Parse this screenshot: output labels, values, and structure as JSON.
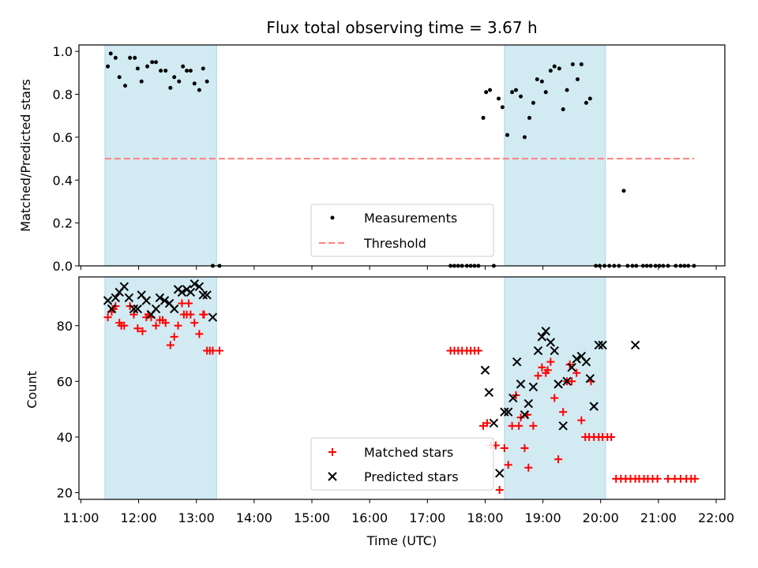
{
  "title": "Flux total observing time = 3.67 h",
  "colors": {
    "band": "#add8e6",
    "measurement": "#000000",
    "threshold": "#ff7f7f",
    "matched": "#ff0000",
    "predicted": "#000000"
  },
  "chart_data": [
    {
      "type": "scatter",
      "ylabel": "Matched/Predicted stars",
      "xlim": [
        "10:58",
        "22:09"
      ],
      "ylim": [
        0,
        1.03
      ],
      "yticks": [
        0.0,
        0.2,
        0.4,
        0.6,
        0.8,
        1.0
      ],
      "ytick_labels": [
        "0.0",
        "0.2",
        "0.4",
        "0.6",
        "0.8",
        "1.0"
      ],
      "shaded_ranges": [
        [
          "11:25",
          "13:21"
        ],
        [
          "18:20",
          "20:05"
        ]
      ],
      "legend": {
        "placement": "lower center",
        "entries": [
          "Measurements",
          "Threshold"
        ]
      },
      "threshold": {
        "name": "Threshold",
        "x": [
          "11:25",
          "21:37"
        ],
        "y": 0.5
      },
      "series": [
        {
          "name": "Measurements",
          "marker": "dot",
          "x": [
            "11:28",
            "11:31",
            "11:36",
            "11:40",
            "11:46",
            "11:51",
            "11:56",
            "11:59",
            "12:03",
            "12:09",
            "12:14",
            "12:18",
            "12:23",
            "12:28",
            "12:33",
            "12:37",
            "12:42",
            "12:46",
            "12:50",
            "12:54",
            "12:58",
            "13:03",
            "13:07",
            "13:11",
            "13:17",
            "13:24",
            "17:24",
            "17:28",
            "17:32",
            "17:36",
            "17:41",
            "17:45",
            "17:49",
            "17:53",
            "17:58",
            "18:01",
            "18:05",
            "18:09",
            "18:14",
            "18:18",
            "18:23",
            "18:28",
            "18:32",
            "18:37",
            "18:41",
            "18:46",
            "18:50",
            "18:54",
            "18:59",
            "19:03",
            "19:08",
            "19:12",
            "19:17",
            "19:21",
            "19:25",
            "19:31",
            "19:36",
            "19:40",
            "19:45",
            "19:49",
            "19:55",
            "19:59",
            "20:04",
            "20:09",
            "20:14",
            "20:19",
            "20:24",
            "20:28",
            "20:33",
            "20:37",
            "20:44",
            "20:48",
            "20:52",
            "20:57",
            "21:01",
            "21:05",
            "21:10",
            "21:18",
            "21:23",
            "21:27",
            "21:31",
            "21:37"
          ],
          "y": [
            0.93,
            0.99,
            0.97,
            0.88,
            0.84,
            0.97,
            0.97,
            0.92,
            0.86,
            0.93,
            0.95,
            0.95,
            0.91,
            0.91,
            0.83,
            0.88,
            0.86,
            0.93,
            0.91,
            0.91,
            0.85,
            0.82,
            0.92,
            0.86,
            0.0,
            0.0,
            0.0,
            0.0,
            0.0,
            0.0,
            0.0,
            0.0,
            0.0,
            0.0,
            0.69,
            0.81,
            0.82,
            0.0,
            0.78,
            0.74,
            0.61,
            0.81,
            0.82,
            0.79,
            0.6,
            0.69,
            0.76,
            0.87,
            0.86,
            0.81,
            0.91,
            0.93,
            0.92,
            0.73,
            0.82,
            0.94,
            0.87,
            0.94,
            0.76,
            0.78,
            0.0,
            0.0,
            0.0,
            0.0,
            0.0,
            0.0,
            0.35,
            0.0,
            0.0,
            0.0,
            0.0,
            0.0,
            0.0,
            0.0,
            0.0,
            0.0,
            0.0,
            0.0,
            0.0,
            0.0,
            0.0,
            0.0
          ]
        }
      ]
    },
    {
      "type": "scatter",
      "ylabel": "Count",
      "xlabel": "Time (UTC)",
      "xlim": [
        "10:58",
        "22:09"
      ],
      "ylim": [
        17.6,
        97.5
      ],
      "yticks": [
        20,
        40,
        60,
        80
      ],
      "ytick_labels": [
        "20",
        "40",
        "60",
        "80"
      ],
      "xticks": [
        "11:00",
        "12:00",
        "13:00",
        "14:00",
        "15:00",
        "16:00",
        "17:00",
        "18:00",
        "19:00",
        "20:00",
        "21:00",
        "22:00"
      ],
      "shaded_ranges": [
        [
          "11:25",
          "13:21"
        ],
        [
          "18:20",
          "20:05"
        ]
      ],
      "legend": {
        "placement": "lower center",
        "entries": [
          "Matched stars",
          "Predicted stars"
        ]
      },
      "series": [
        {
          "name": "Matched stars",
          "marker": "plus",
          "x": [
            "11:28",
            "11:32",
            "11:36",
            "11:40",
            "11:45",
            "11:51",
            "11:55",
            "11:59",
            "12:04",
            "12:08",
            "12:13",
            "12:18",
            "12:22",
            "12:28",
            "12:33",
            "12:37",
            "12:41",
            "12:45",
            "12:50",
            "12:54",
            "12:58",
            "13:03",
            "13:07",
            "13:11",
            "13:17",
            "13:24",
            "17:24",
            "17:28",
            "17:32",
            "17:36",
            "17:41",
            "17:45",
            "17:49",
            "17:53",
            "17:58",
            "18:02",
            "18:06",
            "18:11",
            "18:15",
            "18:20",
            "18:24",
            "18:28",
            "18:32",
            "18:37",
            "18:41",
            "18:45",
            "18:50",
            "18:55",
            "18:59",
            "19:03",
            "19:08",
            "19:12",
            "19:16",
            "19:21",
            "19:25",
            "19:30",
            "19:35",
            "19:40",
            "19:44",
            "19:48",
            "19:53",
            "19:58",
            "20:02",
            "20:07",
            "20:11",
            "20:16",
            "20:21",
            "20:26",
            "20:31",
            "20:36",
            "20:40",
            "20:45",
            "20:49",
            "20:54",
            "20:59",
            "21:10",
            "21:17",
            "21:23",
            "21:29",
            "21:34",
            "21:38"
          ],
          "y": [
            83,
            85,
            87,
            81,
            80,
            87,
            84,
            79,
            78,
            83,
            83,
            80,
            82,
            81,
            73,
            76,
            80,
            88,
            84,
            84,
            81,
            77,
            84,
            71,
            71,
            71,
            71,
            71,
            71,
            71,
            71,
            71,
            71,
            71,
            44,
            45,
            37,
            37,
            21,
            36,
            30,
            44,
            55,
            47,
            36,
            29,
            44,
            62,
            65,
            63,
            67,
            54,
            32,
            49,
            60,
            60,
            63,
            46,
            40,
            40,
            40,
            40,
            40,
            40,
            40,
            25,
            25,
            25,
            25,
            25,
            25,
            25,
            25,
            25,
            25,
            25,
            25,
            25,
            25,
            25,
            25
          ],
          "note_x_extra": [
            "11:34",
            "11:42",
            "12:10",
            "12:25",
            "12:47",
            "12:52",
            "13:08",
            "13:14",
            "18:35",
            "18:44",
            "19:05",
            "19:28",
            "19:50"
          ],
          "note_y_extra": [
            86,
            80,
            84,
            82,
            84,
            88,
            84,
            71,
            44,
            48,
            64,
            66,
            60
          ]
        },
        {
          "name": "Predicted stars",
          "marker": "x",
          "x": [
            "11:28",
            "11:32",
            "11:36",
            "11:40",
            "11:45",
            "11:50",
            "11:55",
            "11:59",
            "12:03",
            "12:08",
            "12:13",
            "12:18",
            "12:22",
            "12:27",
            "12:32",
            "12:37",
            "12:41",
            "12:45",
            "12:50",
            "12:54",
            "12:58",
            "13:03",
            "13:07",
            "13:11",
            "13:17",
            "18:00",
            "18:04",
            "18:09",
            "18:15",
            "18:20",
            "18:24",
            "18:29",
            "18:33",
            "18:37",
            "18:41",
            "18:45",
            "18:50",
            "18:55",
            "18:59",
            "19:03",
            "19:08",
            "19:12",
            "19:16",
            "19:21",
            "19:25",
            "19:30",
            "19:35",
            "19:40",
            "19:45",
            "19:49",
            "19:53",
            "19:58",
            "20:02",
            "20:36"
          ],
          "y": [
            89,
            86,
            90,
            92,
            94,
            90,
            86,
            86,
            91,
            89,
            84,
            86,
            90,
            89,
            88,
            86,
            93,
            92,
            93,
            92,
            95,
            94,
            91,
            91,
            83,
            64,
            56,
            45,
            27,
            49,
            49,
            54,
            67,
            59,
            48,
            52,
            58,
            71,
            76,
            78,
            74,
            71,
            59,
            44,
            60,
            65,
            68,
            69,
            67,
            61,
            51,
            73,
            73,
            73
          ]
        }
      ]
    }
  ]
}
